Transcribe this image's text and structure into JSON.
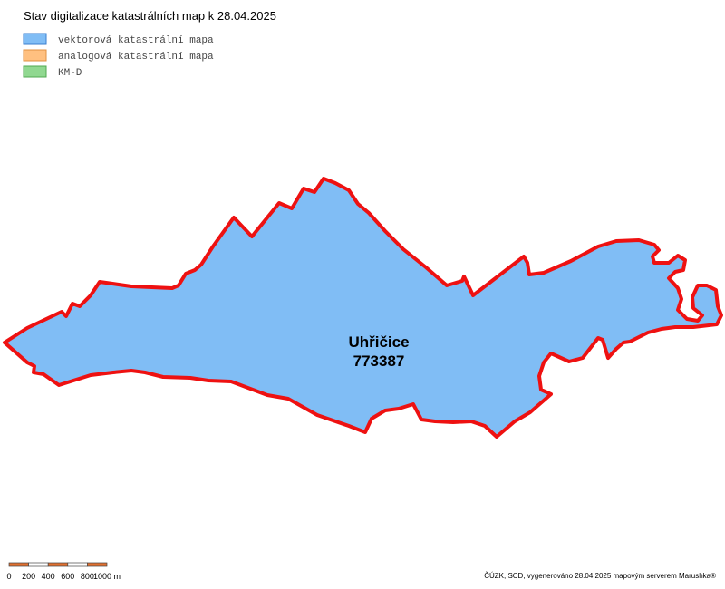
{
  "header": {
    "title": "Stav digitalizace katastrálních map k 28.04.2025"
  },
  "legend": {
    "items": [
      "vektorová katastrální mapa",
      "analogová katastrální mapa",
      "KM-D"
    ]
  },
  "map": {
    "area": {
      "name": "Uhřičice",
      "code": "773387"
    }
  },
  "scale_bar": {
    "labels": [
      "0",
      "200",
      "400",
      "600",
      "800",
      "1000 m"
    ]
  },
  "footer": {
    "credit": "ČÚZK, SCD, vygenerováno 28.04.2025 mapovým serverem Marushka®"
  }
}
